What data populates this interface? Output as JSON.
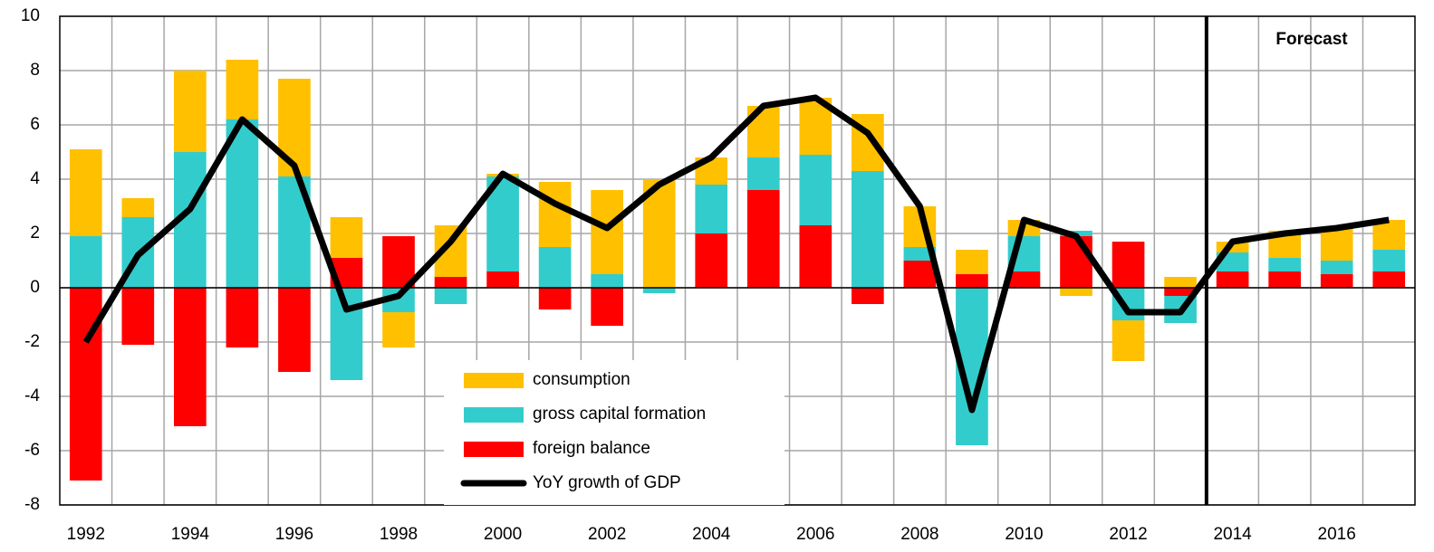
{
  "chart_data": {
    "type": "stacked-bar-line",
    "categories": [
      "1992",
      null,
      "1994",
      null,
      "1996",
      null,
      "1998",
      null,
      "2000",
      null,
      "2002",
      null,
      "2004",
      null,
      "2006",
      null,
      "2008",
      null,
      "2010",
      null,
      "2012",
      null,
      "2014",
      null,
      "2016",
      null
    ],
    "series": [
      {
        "name": "consumption",
        "color": "#ffc000",
        "values": [
          3.2,
          0.7,
          3.0,
          2.2,
          3.6,
          1.5,
          -1.3,
          1.9,
          0.1,
          2.4,
          3.1,
          4.0,
          1.0,
          1.9,
          2.1,
          2.1,
          1.5,
          0.9,
          0.6,
          -0.3,
          -1.5,
          0.4,
          0.4,
          1.0,
          1.2,
          1.1
        ]
      },
      {
        "name": "gross capital formation",
        "color": "#33cccc",
        "values": [
          1.9,
          2.6,
          5.0,
          6.2,
          4.1,
          -3.4,
          -0.9,
          -0.6,
          3.5,
          1.5,
          0.5,
          -0.2,
          1.8,
          1.2,
          2.6,
          4.3,
          0.5,
          -5.8,
          1.3,
          0.2,
          -1.2,
          -1.0,
          0.7,
          0.5,
          0.5,
          0.8
        ]
      },
      {
        "name": "foreign balance",
        "color": "#ff0000",
        "values": [
          -7.1,
          -2.1,
          -5.1,
          -2.2,
          -3.1,
          1.1,
          1.9,
          0.4,
          0.6,
          -0.8,
          -1.4,
          0,
          2.0,
          3.6,
          2.3,
          -0.6,
          1.0,
          0.5,
          0.6,
          1.9,
          1.7,
          -0.3,
          0.6,
          0.6,
          0.5,
          0.6
        ]
      }
    ],
    "line": {
      "name": "YoY growth of GDP",
      "color": "#000000",
      "values": [
        -2.0,
        1.2,
        2.9,
        6.2,
        4.5,
        -0.8,
        -0.3,
        1.7,
        4.2,
        3.1,
        2.2,
        3.8,
        4.8,
        6.7,
        7.0,
        5.7,
        3.0,
        -4.5,
        2.5,
        1.9,
        -0.9,
        -0.9,
        1.7,
        2.0,
        2.2,
        2.5
      ]
    },
    "annotation": "Forecast",
    "ylim": [
      -8,
      10
    ],
    "yticks": [
      -8,
      -6,
      -4,
      -2,
      0,
      2,
      4,
      6,
      8,
      10
    ],
    "grid": true
  }
}
